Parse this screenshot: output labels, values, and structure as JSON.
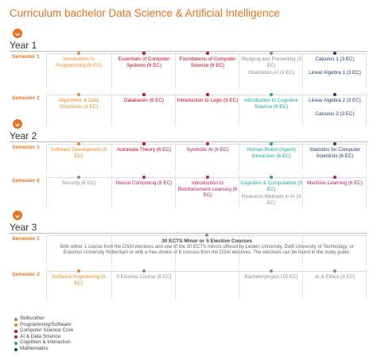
{
  "title": "Curriculum bachelor Data Science & Artificial Intelligence",
  "years": [
    {
      "label": "Year 1",
      "semesters": [
        {
          "label": "Semester 1",
          "columns": [
            [
              {
                "name": "Introduction to Programming (6 EC)",
                "color": "#f08a24"
              }
            ],
            [
              {
                "name": "Essentials of Computer Systems (6 EC)",
                "color": "#d0021b"
              }
            ],
            [
              {
                "name": "Foundations of Computer Science (6 EC)",
                "color": "#d0021b"
              }
            ],
            [
              {
                "name": "Studying and Presenting (3 EC)",
                "color": "#8c8c8c"
              },
              {
                "name": "Orientation AI (3 EC)",
                "color": "#8c8c8c"
              }
            ],
            [
              {
                "name": "Calculus 1 (3 EC)",
                "color": "#1f3a7a"
              },
              {
                "name": "Linear Algebra 1 (3 EC)",
                "color": "#1f3a7a"
              }
            ]
          ]
        },
        {
          "label": "Semester 2",
          "columns": [
            [
              {
                "name": "Algorithms & Data Structures (6 EC)",
                "color": "#f08a24"
              }
            ],
            [
              {
                "name": "Databases (6 EC)",
                "color": "#d0021b"
              }
            ],
            [
              {
                "name": "Introduction to Logic (6 EC)",
                "color": "#d0021b"
              }
            ],
            [
              {
                "name": "Introduction to Cognitive Science (6 EC)",
                "color": "#1aa3a3"
              }
            ],
            [
              {
                "name": "Linear Algebra 2 (3 EC)",
                "color": "#1f3a7a"
              },
              {
                "name": "Calculus 2 (3 EC)",
                "color": "#1f3a7a"
              }
            ]
          ]
        }
      ]
    },
    {
      "label": "Year 2",
      "semesters": [
        {
          "label": "Semester 1",
          "columns": [
            [
              {
                "name": "Software Development (6 EC)",
                "color": "#f08a24"
              }
            ],
            [
              {
                "name": "Automata Theory (6 EC)",
                "color": "#d0021b"
              }
            ],
            [
              {
                "name": "Symbolic AI (6 EC)",
                "color": "#c0176b"
              }
            ],
            [
              {
                "name": "Human-Robot (Agent) Interaction (6 EC)",
                "color": "#1aa3a3"
              }
            ],
            [
              {
                "name": "Statistics for Computer Scientists (6 EC)",
                "color": "#1f3a7a"
              }
            ]
          ]
        },
        {
          "label": "Semester 2",
          "columns": [
            [
              {
                "name": "Security (6 EC)",
                "color": "#8c8c8c"
              }
            ],
            [
              {
                "name": "Neural Computing (6 EC)",
                "color": "#c0176b"
              }
            ],
            [
              {
                "name": "Introduction to Reinforcement Learning (6 EC)",
                "color": "#c0176b"
              }
            ],
            [
              {
                "name": "Cognition & Computation (3 EC)",
                "color": "#1aa3a3"
              },
              {
                "name": "Research Methods in AI (3 EC)",
                "color": "#8c8c8c"
              }
            ],
            [
              {
                "name": "Machine Learning (6 EC)",
                "color": "#c0176b"
              }
            ]
          ]
        }
      ]
    },
    {
      "label": "Year 3",
      "semesters": [
        {
          "label": "Semester 1",
          "minor": {
            "title": "30 ECTS Minor or 5 Elective Courses",
            "text": "With either 1 course from the DSAI electives and one of the 30 ECTS minors offered by Leiden University, Delft University of Technology, or Erasmus University Rotterdam or with a free choice of 6 courses from the DSAI electives. The electives can be found in the study guide.",
            "color": "#8c8c8c"
          }
        },
        {
          "label": "Semester 2",
          "columns": [
            [
              {
                "name": "Software Engineering (6 EC)",
                "color": "#f08a24"
              }
            ],
            [
              {
                "name": "5 Elective Course (6 EC)",
                "color": "#8c8c8c"
              }
            ],
            [],
            [
              {
                "name": "Bachelorproject (15 EC)",
                "color": "#8c8c8c"
              }
            ],
            [
              {
                "name": "AI & Ethics (3 EC)",
                "color": "#8c8c8c"
              }
            ]
          ]
        }
      ]
    }
  ],
  "legend": [
    {
      "label": "Skills/other",
      "color": "#8c8c8c"
    },
    {
      "label": "Programming/Software",
      "color": "#f08a24"
    },
    {
      "label": "Computer Science Core",
      "color": "#d0021b"
    },
    {
      "label": "AI & Data Science",
      "color": "#c0176b"
    },
    {
      "label": "Cognition & Interaction",
      "color": "#1aa3a3"
    },
    {
      "label": "Mathematics",
      "color": "#1f3a7a"
    }
  ]
}
